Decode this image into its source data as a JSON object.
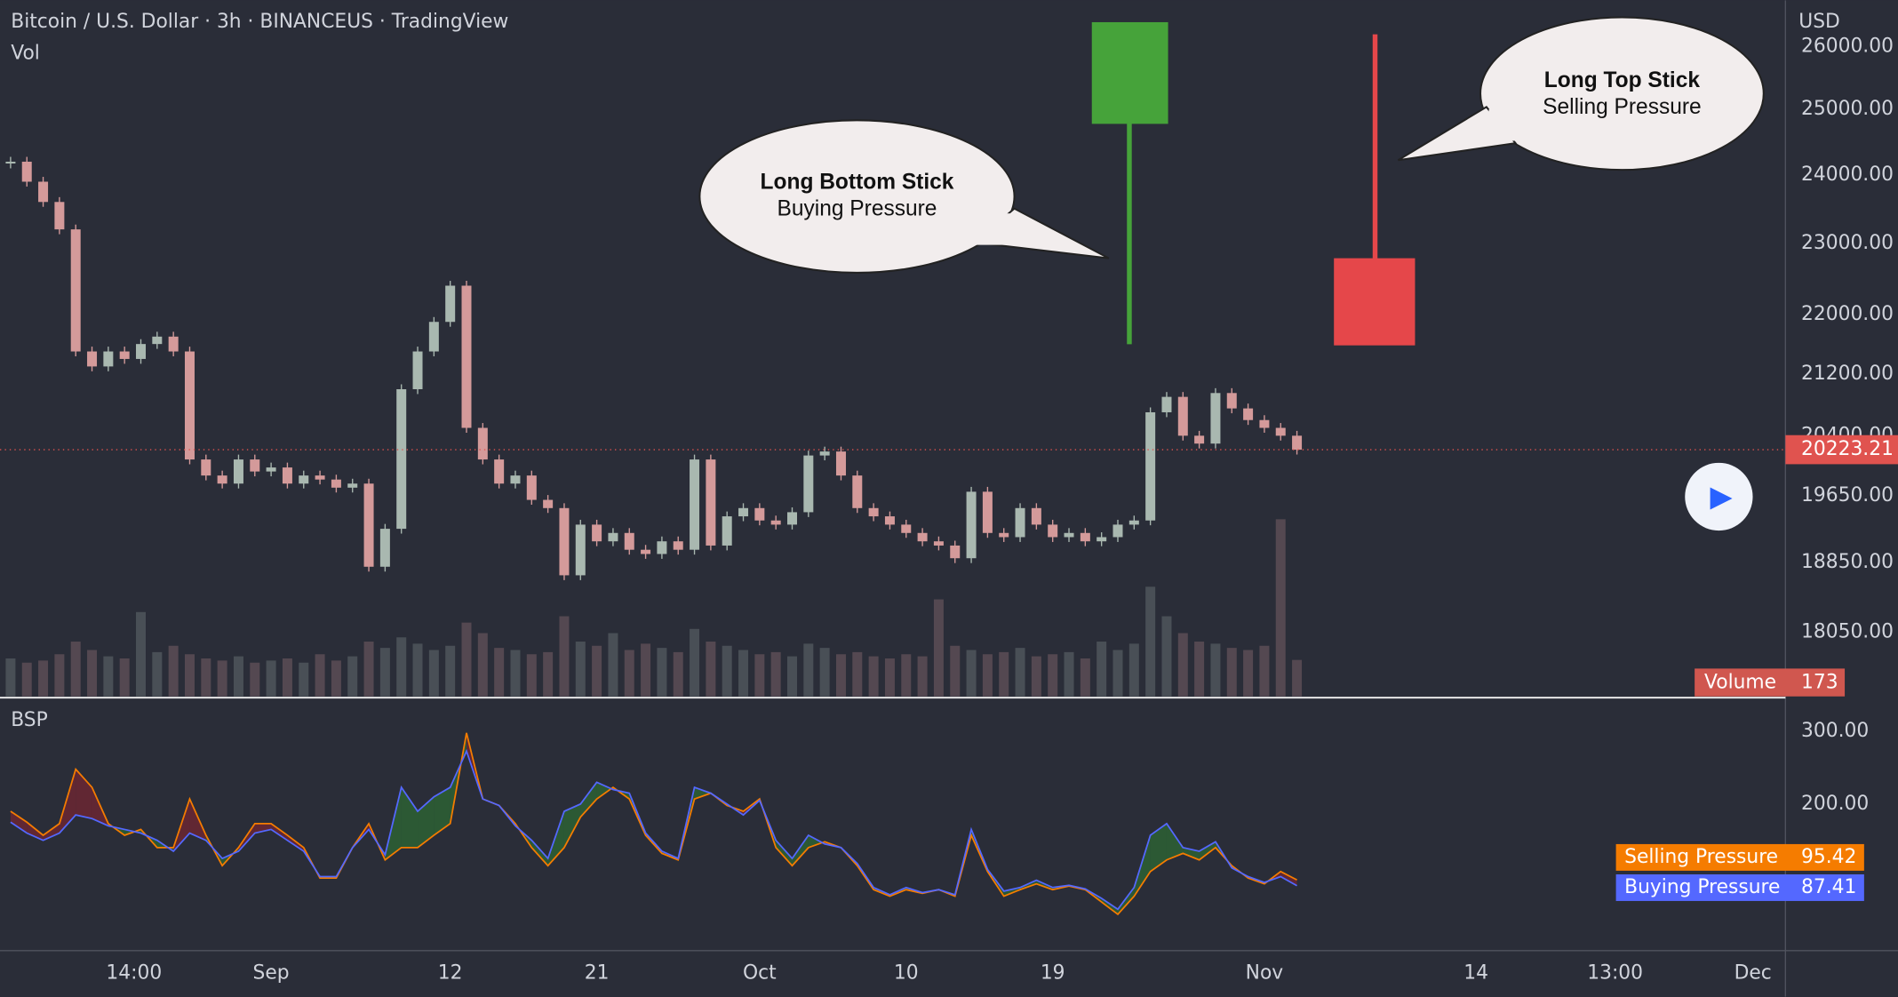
{
  "header": {
    "title": "Bitcoin / U.S. Dollar · 3h · BINANCEUS · TradingView",
    "currency": "USD"
  },
  "annotations": [
    {
      "title": "Long Bottom Stick",
      "text": "Buying Pressure"
    },
    {
      "title": "Long Top Stick",
      "text": "Selling Pressure"
    }
  ],
  "play_label": "▶",
  "chart_data": [
    {
      "type": "candlestick",
      "pane_label": "Vol",
      "log_scale": true,
      "up_color": "#a9b8b0",
      "down_color": "#d49a9a",
      "last_price_color": "#e0534f",
      "x": [
        -16,
        -15,
        -14,
        -13,
        -12,
        -11,
        -10,
        -9,
        -8,
        -7,
        -6,
        -5,
        -4,
        -3,
        -2,
        -1,
        0,
        1,
        2,
        3,
        4,
        5,
        6,
        7,
        8,
        9,
        10,
        11,
        12,
        13,
        14,
        15,
        16,
        17,
        18,
        19,
        20,
        21,
        22,
        23,
        24,
        25,
        26,
        27,
        28,
        29,
        30,
        31,
        32,
        33,
        34,
        35,
        36,
        37,
        38,
        39,
        40,
        41,
        42,
        43,
        44,
        45,
        46,
        47,
        48,
        49,
        50,
        51,
        52,
        53,
        54,
        55,
        56,
        57,
        58,
        59,
        60,
        61,
        62,
        63
      ],
      "close": [
        24200,
        23900,
        23600,
        23200,
        21500,
        21300,
        21500,
        21400,
        21600,
        21700,
        21500,
        20100,
        19900,
        19800,
        20100,
        19950,
        20000,
        19800,
        19900,
        19850,
        19750,
        19800,
        18800,
        19250,
        21000,
        21500,
        21900,
        22400,
        20500,
        20100,
        19800,
        19900,
        19600,
        19500,
        18700,
        19300,
        19100,
        19200,
        19000,
        18950,
        19100,
        19000,
        20100,
        19050,
        19400,
        19500,
        19350,
        19300,
        19450,
        20150,
        20200,
        19900,
        19500,
        19400,
        19300,
        19200,
        19100,
        19050,
        18900,
        19700,
        19200,
        19150,
        19500,
        19300,
        19150,
        19200,
        19100,
        19150,
        19300,
        19350,
        20700,
        20900,
        20400,
        20300,
        20950,
        20750,
        20600,
        20500,
        20400,
        20223
      ],
      "last_price": 20223.21,
      "ylim": [
        17340,
        26760
      ],
      "yticks": [
        {
          "value": 26000,
          "label": "26000.00"
        },
        {
          "value": 25000,
          "label": "25000.00"
        },
        {
          "value": 24000,
          "label": "24000.00"
        },
        {
          "value": 23000,
          "label": "23000.00"
        },
        {
          "value": 22000,
          "label": "22000.00"
        },
        {
          "value": 21200,
          "label": "21200.00"
        },
        {
          "value": 20400,
          "label": "20400.00"
        },
        {
          "value": 19650,
          "label": "19650.00"
        },
        {
          "value": 18850,
          "label": "18850.00"
        },
        {
          "value": 18050,
          "label": "18050.00"
        }
      ],
      "xlim": [
        -16.65,
        93.0
      ],
      "xticks": [
        {
          "value": -8.42,
          "label": "14:00"
        },
        {
          "value": 0,
          "label": "Sep"
        },
        {
          "value": 11,
          "label": "12"
        },
        {
          "value": 20,
          "label": "21"
        },
        {
          "value": 30,
          "label": "Oct"
        },
        {
          "value": 39,
          "label": "10"
        },
        {
          "value": 48,
          "label": "19"
        },
        {
          "value": 61,
          "label": "Nov"
        },
        {
          "value": 74,
          "label": "14"
        },
        {
          "value": 82.54,
          "label": "13:00"
        },
        {
          "value": 91,
          "label": "Dec"
        }
      ],
      "volume": {
        "name": "Volume",
        "color": "#d0574f",
        "ylim": [
          0,
          3300
        ],
        "values": [
          180,
          160,
          170,
          200,
          260,
          220,
          190,
          180,
          400,
          210,
          240,
          200,
          180,
          170,
          190,
          160,
          170,
          180,
          160,
          200,
          170,
          190,
          260,
          230,
          280,
          250,
          220,
          240,
          350,
          300,
          230,
          220,
          200,
          210,
          380,
          260,
          240,
          300,
          220,
          250,
          230,
          210,
          320,
          260,
          240,
          220,
          200,
          210,
          190,
          250,
          230,
          200,
          210,
          190,
          180,
          200,
          190,
          460,
          240,
          220,
          200,
          210,
          230,
          190,
          200,
          210,
          180,
          260,
          220,
          250,
          520,
          380,
          300,
          260,
          250,
          230,
          220,
          240,
          840,
          173
        ]
      }
    },
    {
      "type": "line",
      "pane_label": "BSP",
      "x": [
        -16,
        -15,
        -14,
        -13,
        -12,
        -11,
        -10,
        -9,
        -8,
        -7,
        -6,
        -5,
        -4,
        -3,
        -2,
        -1,
        0,
        1,
        2,
        3,
        4,
        5,
        6,
        7,
        8,
        9,
        10,
        11,
        12,
        13,
        14,
        15,
        16,
        17,
        18,
        19,
        20,
        21,
        22,
        23,
        24,
        25,
        26,
        27,
        28,
        29,
        30,
        31,
        32,
        33,
        34,
        35,
        36,
        37,
        38,
        39,
        40,
        41,
        42,
        43,
        44,
        45,
        46,
        47,
        48,
        49,
        50,
        51,
        52,
        53,
        54,
        55,
        56,
        57,
        58,
        59,
        60,
        61,
        62,
        63
      ],
      "ylim": [
        -2,
        345
      ],
      "yticks": [
        {
          "value": 300,
          "label": "300.00"
        },
        {
          "value": 200,
          "label": "200.00"
        }
      ],
      "up_fill": "#2e7d32",
      "down_fill": "#8e2230",
      "series": [
        {
          "name": "Selling Pressure",
          "color": "#f57c00",
          "values": [
            190,
            175,
            157,
            173,
            248,
            223,
            173,
            157,
            165,
            140,
            140,
            207,
            157,
            115,
            140,
            173,
            173,
            157,
            140,
            98,
            98,
            140,
            173,
            123,
            140,
            140,
            157,
            173,
            298,
            207,
            198,
            173,
            140,
            115,
            140,
            182,
            207,
            223,
            207,
            157,
            132,
            123,
            207,
            215,
            198,
            190,
            207,
            140,
            115,
            140,
            148,
            140,
            115,
            82,
            73,
            82,
            77,
            82,
            73,
            157,
            107,
            73,
            82,
            90,
            82,
            87,
            82,
            65,
            48,
            73,
            107,
            123,
            132,
            123,
            140,
            115,
            98,
            90,
            107,
            95.42
          ]
        },
        {
          "name": "Buying Pressure",
          "color": "#5468ff",
          "values": [
            175,
            160,
            150,
            160,
            185,
            180,
            170,
            165,
            160,
            150,
            135,
            160,
            150,
            125,
            135,
            160,
            165,
            150,
            135,
            100,
            100,
            140,
            165,
            130,
            223,
            190,
            210,
            223,
            273,
            207,
            198,
            170,
            150,
            125,
            190,
            200,
            230,
            220,
            215,
            160,
            135,
            125,
            223,
            215,
            200,
            185,
            205,
            150,
            125,
            157,
            145,
            140,
            118,
            85,
            75,
            85,
            78,
            82,
            75,
            165,
            110,
            80,
            85,
            95,
            85,
            88,
            83,
            70,
            55,
            85,
            157,
            173,
            140,
            135,
            148,
            112,
            100,
            92,
            100,
            87.41
          ]
        }
      ]
    }
  ]
}
